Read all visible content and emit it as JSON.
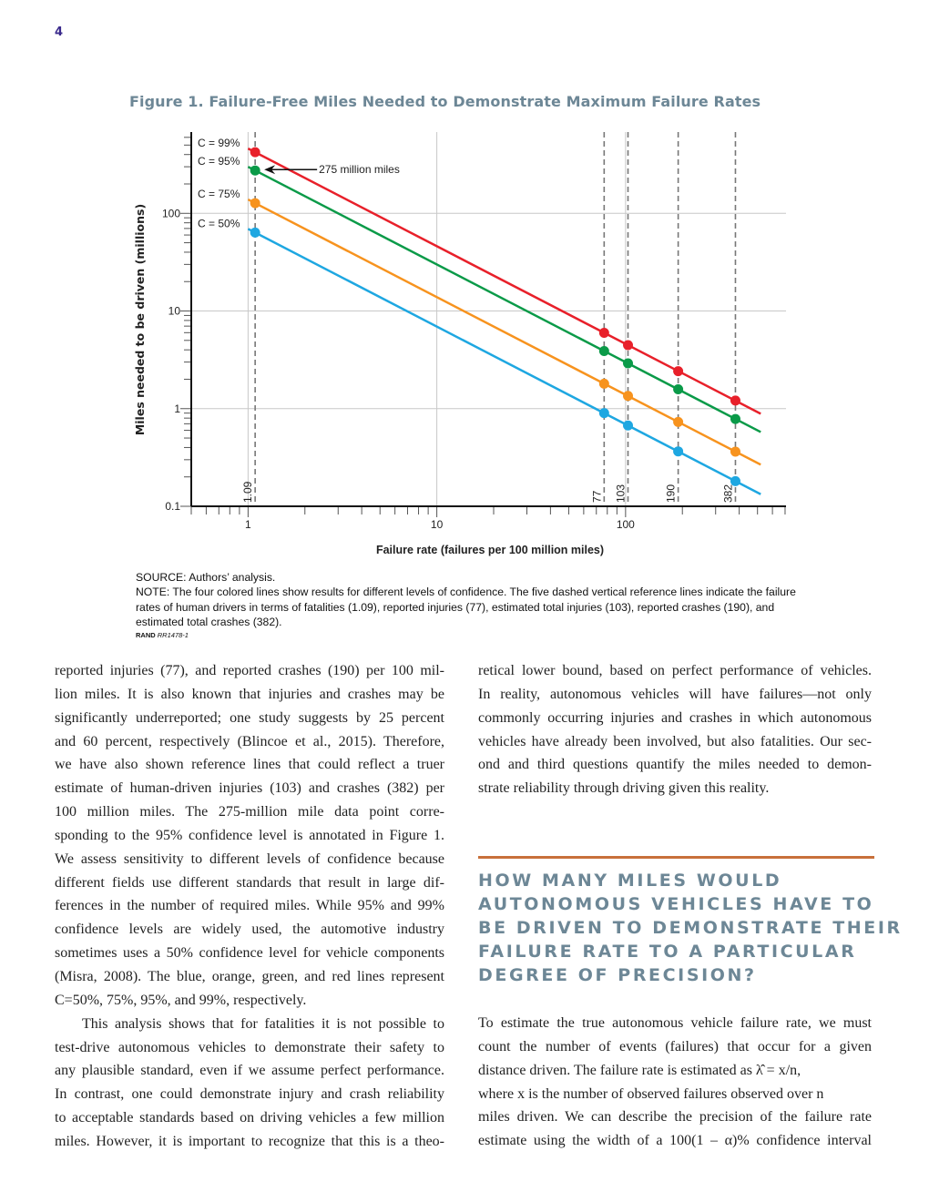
{
  "page_number": "4",
  "figure": {
    "title": "Figure 1. Failure-Free Miles Needed to Demonstrate Maximum Failure Rates",
    "source": "SOURCE: Authors’ analysis.",
    "note": "NOTE: The four colored lines show results for different levels of confidence. The five dashed vertical reference lines indicate the failure rates of human drivers in terms of fatalities (1.09), reported injuries (77), estimated total injuries (103), reported crashes (190), and estimated total crashes (382).",
    "credit_org": "RAND",
    "credit_id": "RR1478-1"
  },
  "chart_data": {
    "type": "line",
    "xlabel": "Failure rate (failures per 100 million miles)",
    "ylabel": "Miles needed to be driven (millions)",
    "x_scale": "log",
    "y_scale": "log",
    "xlim": [
      0.5,
      708
    ],
    "ylim": [
      0.1,
      680
    ],
    "x_ticks": [
      {
        "value": 1,
        "label": "1"
      },
      {
        "value": 10,
        "label": "10"
      },
      {
        "value": 100,
        "label": "100"
      }
    ],
    "y_ticks": [
      {
        "value": 0.1,
        "label": "0.1"
      },
      {
        "value": 1,
        "label": "1"
      },
      {
        "value": 10,
        "label": "10"
      },
      {
        "value": 100,
        "label": "100"
      }
    ],
    "grid": true,
    "reference_lines": [
      {
        "x": 1.09,
        "label": "1.09"
      },
      {
        "x": 77,
        "label": "77"
      },
      {
        "x": 103,
        "label": "103"
      },
      {
        "x": 190,
        "label": "190"
      },
      {
        "x": 382,
        "label": "382"
      }
    ],
    "line_x": [
      1,
      520
    ],
    "series": [
      {
        "name": "C = 99%",
        "color": "#e8202a",
        "line_y": [
          460.5,
          0.886
        ],
        "points_x": [
          1.09,
          77,
          103,
          190,
          382
        ],
        "points_y": [
          422.5,
          5.98,
          4.47,
          2.42,
          1.21
        ]
      },
      {
        "name": "C = 95%",
        "color": "#0a9a48",
        "line_y": [
          299.6,
          0.576
        ],
        "points_x": [
          1.09,
          77,
          103,
          190,
          382
        ],
        "points_y": [
          274.8,
          3.89,
          2.91,
          1.58,
          0.784
        ]
      },
      {
        "name": "C = 75%",
        "color": "#f7931e",
        "line_y": [
          138.6,
          0.267
        ],
        "points_x": [
          1.09,
          77,
          103,
          190,
          382
        ],
        "points_y": [
          127.2,
          1.8,
          1.35,
          0.73,
          0.363
        ]
      },
      {
        "name": "C = 50%",
        "color": "#1ea7e1",
        "line_y": [
          69.3,
          0.133
        ],
        "points_x": [
          1.09,
          77,
          103,
          190,
          382
        ],
        "points_y": [
          63.6,
          0.9,
          0.673,
          0.365,
          0.181
        ]
      }
    ],
    "annotation": {
      "text": "275 million miles",
      "x": 1.09,
      "y": 274.8
    }
  },
  "left_column": [
    "reported injuries (77), and reported crashes (190) per 100 mil-",
    "lion miles. It is also known that injuries and crashes may be",
    "significantly underreported; one study suggests by 25 percent",
    "and 60 percent, respectively (Blincoe et al., 2015). Therefore,",
    "we have also shown reference lines that could reflect a truer",
    "estimate of human-driven injuries (103) and crashes (382) per",
    "100 million miles. The 275-million mile data point corre-",
    "sponding to the 95% confidence level is annotated in Figure 1.",
    "We assess sensitivity to different levels of confidence because",
    "different fields use different standards that result in large dif-",
    "ferences in the number of required miles. While 95% and 99%",
    "confidence levels are widely used, the automotive industry",
    "sometimes uses a 50% confidence level for vehicle components",
    "(Misra, 2008). The blue, orange, green, and red lines represent",
    "C=50%, 75%, 95%, and 99%, respectively.",
    "This analysis shows that for fatalities it is not possible to",
    "test-drive autonomous vehicles to demonstrate their safety to",
    "any plausible standard, even if we assume perfect performance.",
    "In contrast, one could demonstrate injury and crash reliability",
    "to acceptable standards based on driving vehicles a few million",
    "miles. However, it is important to recognize that this is a theo-"
  ],
  "right_column_top": [
    "retical lower bound, based on perfect performance of vehicles.",
    "In reality, autonomous vehicles will have failures—not only",
    "commonly occurring injuries and crashes in which autonomous",
    "vehicles have already been involved, but also fatalities. Our sec-",
    "ond and third questions quantify the miles needed to demon-",
    "strate reliability through driving given this reality."
  ],
  "section_heading": [
    "HOW MANY MILES WOULD",
    "AUTONOMOUS VEHICLES HAVE TO",
    "BE DRIVEN TO DEMONSTRATE THEIR",
    "FAILURE RATE TO A PARTICULAR",
    "DEGREE OF PRECISION?"
  ],
  "right_column_bottom": [
    "To estimate the true autonomous vehicle failure rate, we must",
    "count the number of events (failures) that occur for a given",
    "distance driven. The failure rate is estimated as λ̂ = x/n,",
    "where x is the number of observed failures observed over n",
    "miles driven. We can describe the precision of the failure rate",
    "estimate using the width of a 100(1 – α)% confidence interval"
  ],
  "colors": {
    "heading": "#6d8796",
    "rule": "#c8703a",
    "page_number": "#3a2a8c"
  }
}
